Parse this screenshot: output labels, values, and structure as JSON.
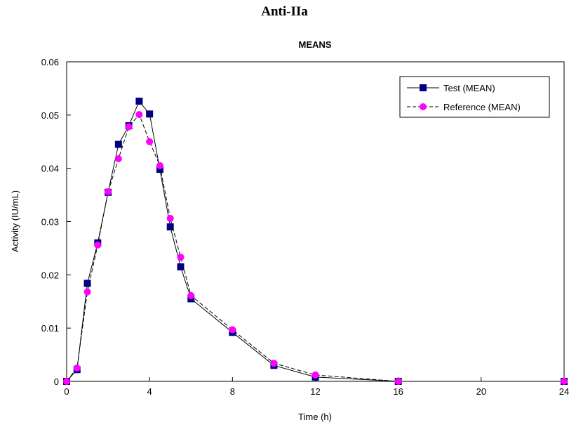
{
  "figure_title": "Anti-IIa",
  "chart_data": {
    "type": "line",
    "title": "MEANS",
    "xlabel": "Time (h)",
    "ylabel": "Activity  (IU/mL)",
    "xlim": [
      0,
      24
    ],
    "ylim": [
      0,
      0.06
    ],
    "xticks": [
      0,
      4,
      8,
      12,
      16,
      20,
      24
    ],
    "yticks": [
      0,
      0.01,
      0.02,
      0.03,
      0.04,
      0.05,
      0.06
    ],
    "ytick_labels": [
      "0",
      "0.01",
      "0.02",
      "0.03",
      "0.04",
      "0.05",
      "0.06"
    ],
    "grid": false,
    "legend_position": "top-right",
    "series": [
      {
        "name": "Test (MEAN)",
        "color": "#000080",
        "line_style": "solid",
        "marker": "square",
        "x": [
          0,
          0.5,
          1,
          1.5,
          2,
          2.5,
          3,
          3.5,
          4,
          4.5,
          5,
          5.5,
          6,
          8,
          10,
          12,
          16,
          24
        ],
        "y": [
          0,
          0.0022,
          0.0184,
          0.026,
          0.0355,
          0.0445,
          0.048,
          0.0526,
          0.0502,
          0.0398,
          0.029,
          0.0215,
          0.0155,
          0.0092,
          0.003,
          0.0008,
          0,
          0
        ]
      },
      {
        "name": "Reference (MEAN)",
        "color": "#ff00ff",
        "line_style": "dashed",
        "marker": "circle",
        "x": [
          0,
          0.5,
          1,
          1.5,
          2,
          2.5,
          3,
          3.5,
          4,
          4.5,
          5,
          5.5,
          6,
          8,
          10,
          12,
          16,
          24
        ],
        "y": [
          0,
          0.0025,
          0.0168,
          0.0256,
          0.0356,
          0.0418,
          0.0478,
          0.0501,
          0.045,
          0.0405,
          0.0306,
          0.0233,
          0.0161,
          0.0097,
          0.0034,
          0.0012,
          0,
          0
        ]
      }
    ]
  }
}
